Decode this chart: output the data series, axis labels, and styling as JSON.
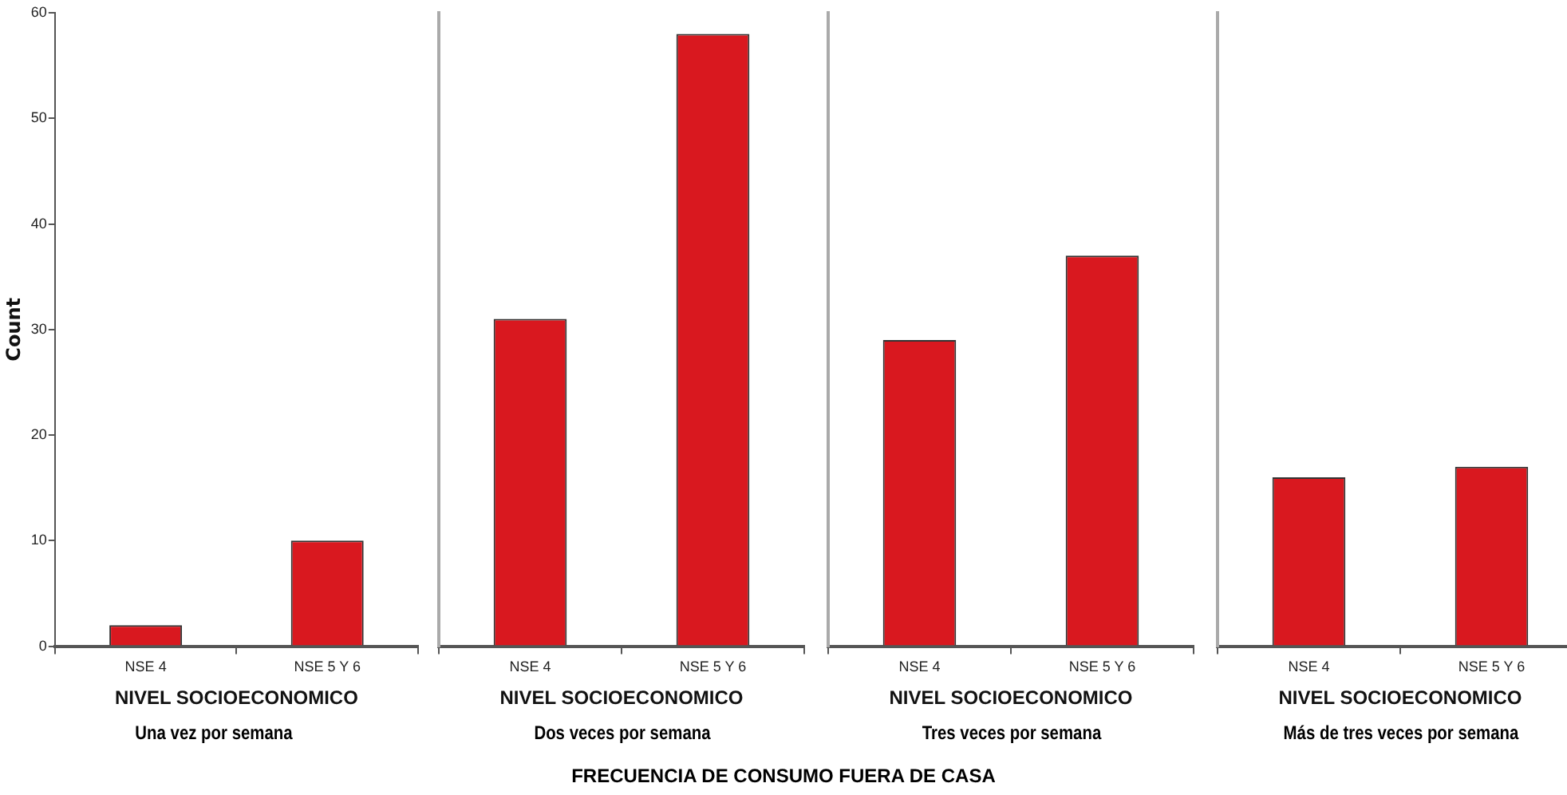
{
  "chart_data": [
    {
      "type": "bar",
      "categories": [
        "NSE 4",
        "NSE 5 Y 6"
      ],
      "values": [
        2,
        10
      ],
      "color": "#d9181f",
      "xlabel": "NIVEL SOCIOECONOMICO",
      "subtitle": "Una vez por semana",
      "ylabel": "Count",
      "ylim": [
        0,
        60
      ],
      "yticks": [
        0,
        10,
        20,
        30,
        40,
        50,
        60
      ],
      "grid": false,
      "legend": false,
      "annotations": [
        "FRECUENCIA DE CONSUMO FUERA DE CASA"
      ]
    },
    {
      "type": "bar",
      "categories": [
        "NSE 4",
        "NSE 5 Y 6"
      ],
      "values": [
        31,
        58
      ],
      "color": "#d9181f",
      "xlabel": "NIVEL SOCIOECONOMICO",
      "subtitle": "Dos veces por semana",
      "ylim": [
        0,
        60
      ],
      "yticks": [
        0,
        10,
        20,
        30,
        40,
        50,
        60
      ],
      "grid": false,
      "legend": false,
      "tick_labels": "x"
    },
    {
      "type": "bar",
      "categories": [
        "NSE 4",
        "NSE 5 Y 6"
      ],
      "values": [
        29,
        37
      ],
      "color": "#d9181f",
      "xlabel": "NIVEL SOCIOECONOMICO",
      "subtitle": "Tres veces por semana",
      "ylim": [
        0,
        60
      ],
      "yticks": [
        0,
        10,
        20,
        30,
        40,
        50,
        60
      ],
      "grid": false,
      "legend": false,
      "tick_labels": "x"
    },
    {
      "type": "bar",
      "categories": [
        "NSE 4",
        "NSE 5 Y 6"
      ],
      "values": [
        16,
        17
      ],
      "color": "#d9181f",
      "xlabel": "NIVEL SOCIOECONOMICO",
      "subtitle": "Más de tres veces por semana",
      "ylim": [
        0,
        60
      ],
      "yticks": [
        0,
        10,
        20,
        30,
        40,
        50,
        60
      ],
      "grid": false,
      "legend": false,
      "tick_labels": "x"
    }
  ]
}
